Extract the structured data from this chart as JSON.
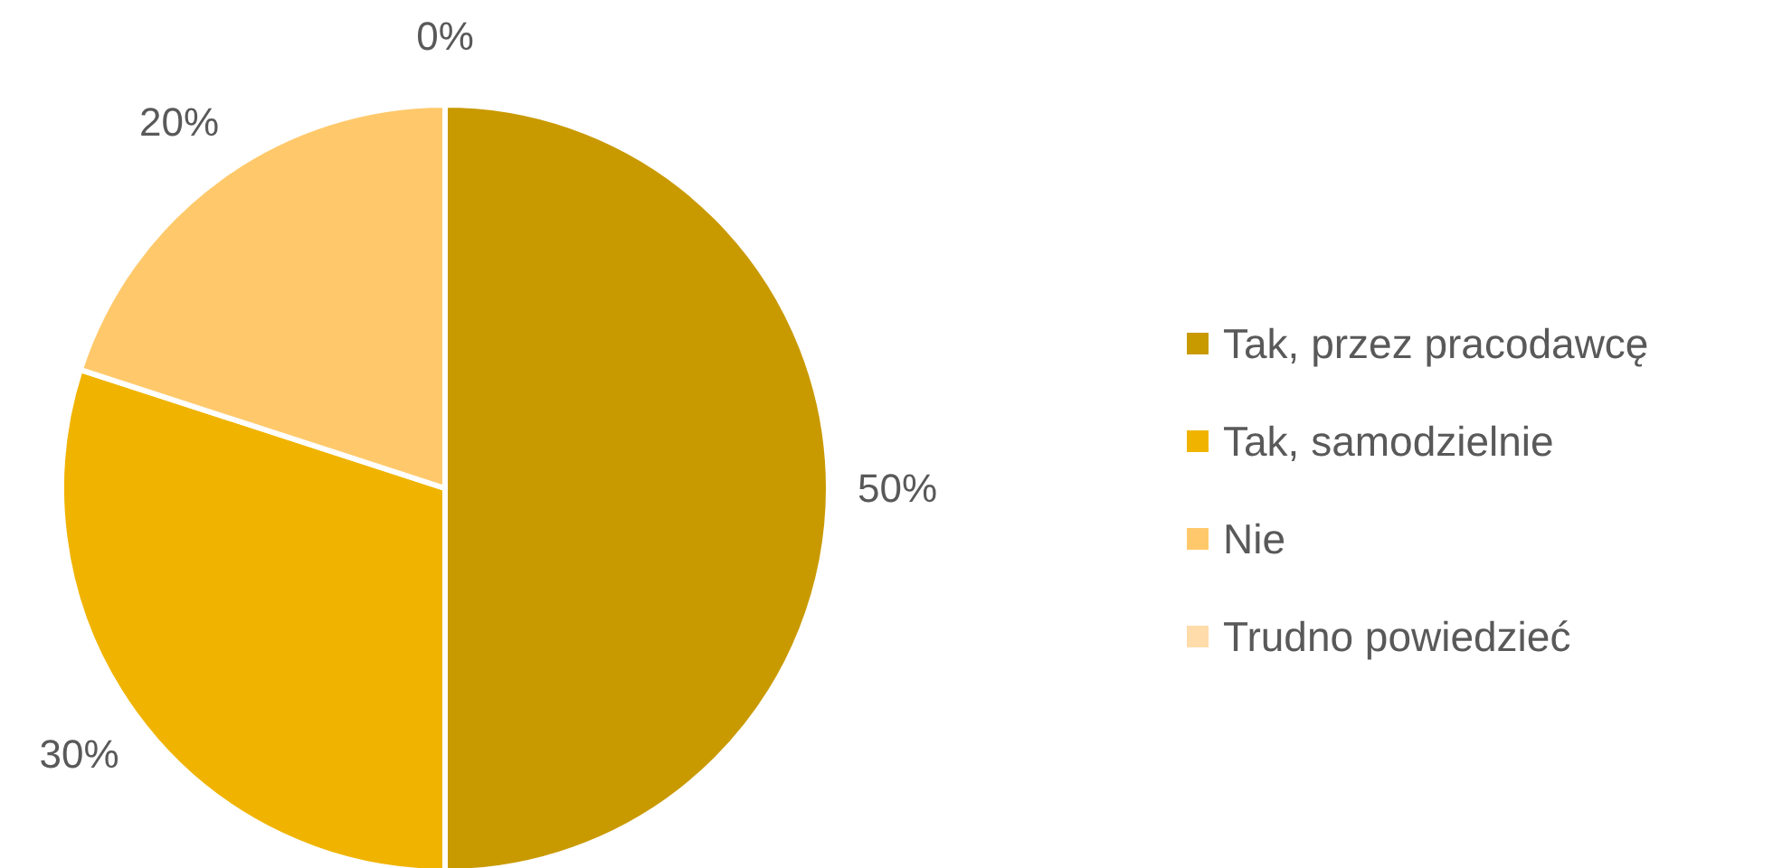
{
  "chart_data": {
    "type": "pie",
    "categories": [
      "Tak, przez pracodawcę",
      "Tak, samodzielnie",
      "Nie",
      "Trudno powiedzieć"
    ],
    "values": [
      50,
      30,
      20,
      0
    ],
    "colors": [
      "#c99a00",
      "#f0b400",
      "#ffc96b",
      "#ffdcaa"
    ],
    "value_labels": [
      "50%",
      "30%",
      "20%",
      "0%"
    ],
    "legend": "right"
  }
}
